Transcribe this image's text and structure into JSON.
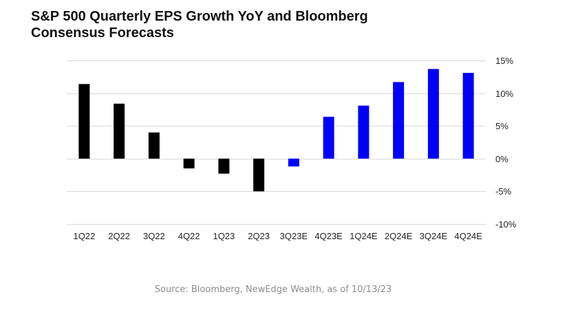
{
  "chart_data": {
    "type": "bar",
    "title_lines": [
      "S&P 500 Quarterly EPS Growth YoY and Bloomberg",
      "Consensus Forecasts"
    ],
    "categories": [
      "1Q22",
      "2Q22",
      "3Q22",
      "4Q22",
      "1Q23",
      "2Q23",
      "3Q23E",
      "4Q23E",
      "1Q24E",
      "2Q24E",
      "3Q24E",
      "4Q24E"
    ],
    "values": [
      11.4,
      8.4,
      4.0,
      -1.5,
      -2.3,
      -5.0,
      -1.2,
      6.4,
      8.1,
      11.7,
      13.7,
      13.1
    ],
    "series_kind": [
      "actual",
      "actual",
      "actual",
      "actual",
      "actual",
      "actual",
      "estimate",
      "estimate",
      "estimate",
      "estimate",
      "estimate",
      "estimate"
    ],
    "colors": {
      "actual": "#000000",
      "estimate": "#0000ff",
      "grid": "#d9d9d9",
      "tick": "#222222"
    },
    "ylim": [
      -10,
      15
    ],
    "yticks": [
      15,
      10,
      5,
      0,
      -5,
      -10
    ],
    "ytick_labels": [
      "15%",
      "10%",
      "5%",
      "0%",
      "-5%",
      "-10%"
    ],
    "y_axis_side": "right",
    "grid": true,
    "xlabel": "",
    "ylabel": ""
  },
  "source": "Source: Bloomberg, NewEdge Wealth, as of 10/13/23"
}
